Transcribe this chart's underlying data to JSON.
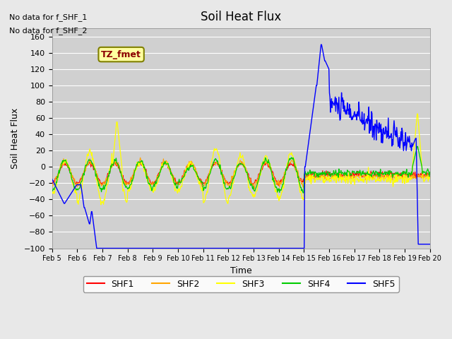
{
  "title": "Soil Heat Flux",
  "ylabel": "Soil Heat Flux",
  "xlabel": "Time",
  "ylim": [
    -100,
    170
  ],
  "yticks": [
    -100,
    -80,
    -60,
    -40,
    -20,
    0,
    20,
    40,
    60,
    80,
    100,
    120,
    140,
    160
  ],
  "background_color": "#e8e8e8",
  "annotation_text1": "No data for f_SHF_1",
  "annotation_text2": "No data for f_SHF_2",
  "tz_label": "TZ_fmet",
  "legend_entries": [
    "SHF1",
    "SHF2",
    "SHF3",
    "SHF4",
    "SHF5"
  ],
  "legend_colors": [
    "#ff0000",
    "#ffa500",
    "#ffff00",
    "#00cc00",
    "#0000ff"
  ],
  "x_tick_labels": [
    "Feb 5",
    "Feb 6",
    "Feb 7",
    "Feb 8",
    "Feb 9",
    "Feb 10",
    "Feb 11",
    "Feb 12",
    "Feb 13",
    "Feb 14",
    "Feb 15",
    "Feb 16",
    "Feb 17",
    "Feb 18",
    "Feb 19",
    "Feb 20"
  ],
  "num_days": 15,
  "points_per_day": 48
}
